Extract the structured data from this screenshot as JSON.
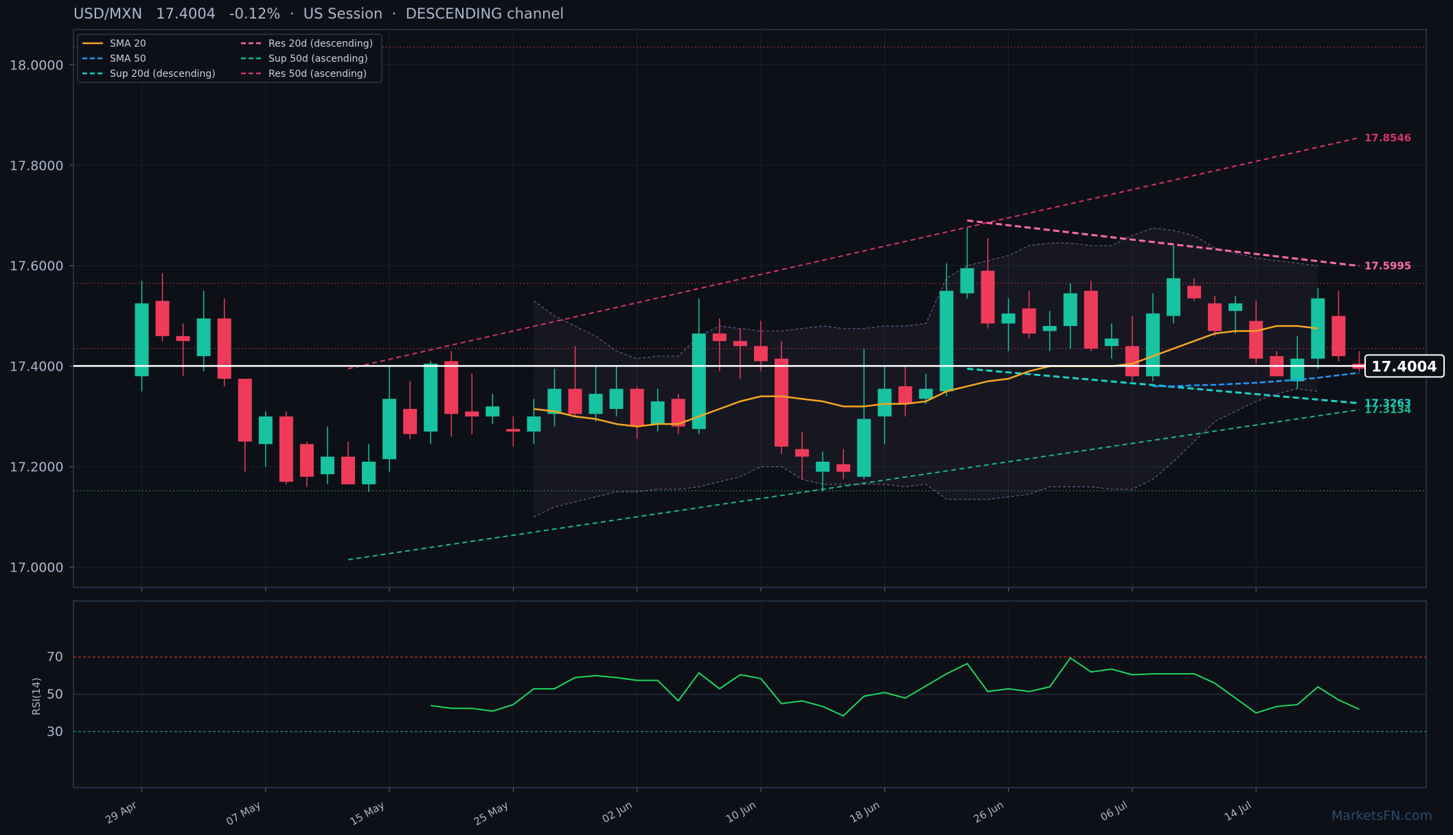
{
  "header": {
    "pair": "USD/MXN",
    "price": "17.4004",
    "change": "-0.12%",
    "session": "US Session",
    "channel": "DESCENDING channel",
    "sep": "·"
  },
  "watermark": "MarketsFN.com",
  "chart_data": [
    {
      "type": "candlestick",
      "title": "USD/MXN 17.4004 -0.12% · US Session · DESCENDING channel",
      "ylim": [
        16.96,
        18.07
      ],
      "yticks": [
        "17.0000",
        "17.2000",
        "17.4000",
        "17.6000",
        "17.8000",
        "18.0000"
      ],
      "xtick_labels": [
        "29 Apr",
        "07 May",
        "15 May",
        "25 May",
        "02 Jun",
        "10 Jun",
        "18 Jun",
        "26 Jun",
        "06 Jul",
        "14 Jul"
      ],
      "xtick_index": [
        0,
        6,
        12,
        18,
        24,
        30,
        36,
        42,
        48,
        54
      ],
      "grid": true,
      "legend_position": "top-left",
      "legend": [
        {
          "label": "SMA 20",
          "color": "#f5a623",
          "dash": "solid"
        },
        {
          "label": "Res 20d (descending)",
          "color": "#ff6ba8",
          "dash": "dashed"
        },
        {
          "label": "SMA 50",
          "color": "#1e9bff",
          "dash": "dashed"
        },
        {
          "label": "Sup 50d (ascending)",
          "color": "#17b890",
          "dash": "dashed"
        },
        {
          "label": "Sup 20d (descending)",
          "color": "#19d3c5",
          "dash": "dashed"
        },
        {
          "label": "Res 50d (ascending)",
          "color": "#d6336c",
          "dash": "dashed"
        }
      ],
      "candles": [
        {
          "o": 17.38,
          "h": 17.57,
          "l": 17.35,
          "c": 17.525
        },
        {
          "o": 17.53,
          "h": 17.585,
          "l": 17.45,
          "c": 17.46
        },
        {
          "o": 17.46,
          "h": 17.485,
          "l": 17.38,
          "c": 17.45
        },
        {
          "o": 17.42,
          "h": 17.55,
          "l": 17.39,
          "c": 17.495
        },
        {
          "o": 17.495,
          "h": 17.535,
          "l": 17.36,
          "c": 17.375
        },
        {
          "o": 17.375,
          "h": 17.375,
          "l": 17.19,
          "c": 17.25
        },
        {
          "o": 17.245,
          "h": 17.31,
          "l": 17.2,
          "c": 17.3
        },
        {
          "o": 17.3,
          "h": 17.31,
          "l": 17.165,
          "c": 17.17
        },
        {
          "o": 17.245,
          "h": 17.25,
          "l": 17.16,
          "c": 17.18
        },
        {
          "o": 17.185,
          "h": 17.28,
          "l": 17.165,
          "c": 17.22
        },
        {
          "o": 17.22,
          "h": 17.25,
          "l": 17.165,
          "c": 17.165
        },
        {
          "o": 17.165,
          "h": 17.245,
          "l": 17.15,
          "c": 17.21
        },
        {
          "o": 17.215,
          "h": 17.4,
          "l": 17.19,
          "c": 17.335
        },
        {
          "o": 17.315,
          "h": 17.37,
          "l": 17.255,
          "c": 17.265
        },
        {
          "o": 17.27,
          "h": 17.41,
          "l": 17.245,
          "c": 17.405
        },
        {
          "o": 17.41,
          "h": 17.43,
          "l": 17.26,
          "c": 17.305
        },
        {
          "o": 17.31,
          "h": 17.385,
          "l": 17.265,
          "c": 17.3
        },
        {
          "o": 17.3,
          "h": 17.345,
          "l": 17.285,
          "c": 17.32
        },
        {
          "o": 17.275,
          "h": 17.3,
          "l": 17.24,
          "c": 17.27
        },
        {
          "o": 17.27,
          "h": 17.335,
          "l": 17.245,
          "c": 17.3
        },
        {
          "o": 17.305,
          "h": 17.395,
          "l": 17.28,
          "c": 17.355
        },
        {
          "o": 17.355,
          "h": 17.44,
          "l": 17.3,
          "c": 17.305
        },
        {
          "o": 17.305,
          "h": 17.4,
          "l": 17.29,
          "c": 17.345
        },
        {
          "o": 17.315,
          "h": 17.4,
          "l": 17.3,
          "c": 17.355
        },
        {
          "o": 17.355,
          "h": 17.36,
          "l": 17.255,
          "c": 17.28
        },
        {
          "o": 17.285,
          "h": 17.355,
          "l": 17.27,
          "c": 17.33
        },
        {
          "o": 17.335,
          "h": 17.345,
          "l": 17.265,
          "c": 17.28
        },
        {
          "o": 17.275,
          "h": 17.535,
          "l": 17.265,
          "c": 17.465
        },
        {
          "o": 17.465,
          "h": 17.495,
          "l": 17.39,
          "c": 17.45
        },
        {
          "o": 17.45,
          "h": 17.475,
          "l": 17.375,
          "c": 17.44
        },
        {
          "o": 17.44,
          "h": 17.49,
          "l": 17.39,
          "c": 17.41
        },
        {
          "o": 17.415,
          "h": 17.45,
          "l": 17.225,
          "c": 17.24
        },
        {
          "o": 17.235,
          "h": 17.27,
          "l": 17.175,
          "c": 17.22
        },
        {
          "o": 17.19,
          "h": 17.23,
          "l": 17.15,
          "c": 17.21
        },
        {
          "o": 17.205,
          "h": 17.235,
          "l": 17.175,
          "c": 17.19
        },
        {
          "o": 17.18,
          "h": 17.435,
          "l": 17.175,
          "c": 17.295
        },
        {
          "o": 17.3,
          "h": 17.4,
          "l": 17.245,
          "c": 17.355
        },
        {
          "o": 17.36,
          "h": 17.4,
          "l": 17.3,
          "c": 17.325
        },
        {
          "o": 17.335,
          "h": 17.385,
          "l": 17.325,
          "c": 17.355
        },
        {
          "o": 17.35,
          "h": 17.605,
          "l": 17.34,
          "c": 17.55
        },
        {
          "o": 17.545,
          "h": 17.675,
          "l": 17.535,
          "c": 17.595
        },
        {
          "o": 17.59,
          "h": 17.655,
          "l": 17.475,
          "c": 17.485
        },
        {
          "o": 17.485,
          "h": 17.535,
          "l": 17.43,
          "c": 17.505
        },
        {
          "o": 17.515,
          "h": 17.55,
          "l": 17.455,
          "c": 17.465
        },
        {
          "o": 17.47,
          "h": 17.51,
          "l": 17.43,
          "c": 17.48
        },
        {
          "o": 17.48,
          "h": 17.565,
          "l": 17.435,
          "c": 17.545
        },
        {
          "o": 17.55,
          "h": 17.57,
          "l": 17.43,
          "c": 17.435
        },
        {
          "o": 17.44,
          "h": 17.485,
          "l": 17.415,
          "c": 17.455
        },
        {
          "o": 17.44,
          "h": 17.5,
          "l": 17.37,
          "c": 17.38
        },
        {
          "o": 17.38,
          "h": 17.545,
          "l": 17.37,
          "c": 17.505
        },
        {
          "o": 17.5,
          "h": 17.64,
          "l": 17.485,
          "c": 17.575
        },
        {
          "o": 17.56,
          "h": 17.575,
          "l": 17.53,
          "c": 17.535
        },
        {
          "o": 17.525,
          "h": 17.54,
          "l": 17.46,
          "c": 17.47
        },
        {
          "o": 17.51,
          "h": 17.54,
          "l": 17.465,
          "c": 17.525
        },
        {
          "o": 17.49,
          "h": 17.53,
          "l": 17.405,
          "c": 17.415
        },
        {
          "o": 17.42,
          "h": 17.43,
          "l": 17.38,
          "c": 17.38
        },
        {
          "o": 17.37,
          "h": 17.46,
          "l": 17.355,
          "c": 17.415
        },
        {
          "o": 17.415,
          "h": 17.555,
          "l": 17.395,
          "c": 17.535
        },
        {
          "o": 17.5,
          "h": 17.55,
          "l": 17.41,
          "c": 17.42
        },
        {
          "o": 17.405,
          "h": 17.43,
          "l": 17.39,
          "c": 17.395
        }
      ],
      "sma20": {
        "start": 19,
        "values": [
          17.315,
          17.31,
          17.3,
          17.295,
          17.285,
          17.28,
          17.285,
          17.285,
          17.3,
          17.315,
          17.33,
          17.34,
          17.34,
          17.335,
          17.33,
          17.32,
          17.32,
          17.325,
          17.325,
          17.33,
          17.35,
          17.36,
          17.37,
          17.375,
          17.39,
          17.4,
          17.4,
          17.4,
          17.4,
          17.405,
          17.42,
          17.435,
          17.45,
          17.465,
          17.47,
          17.47,
          17.48,
          17.48,
          17.475
        ]
      },
      "sma50": {
        "start": 49,
        "values": [
          17.36,
          17.36,
          17.362,
          17.363,
          17.365,
          17.367,
          17.37,
          17.373,
          17.377,
          17.382,
          17.387
        ]
      },
      "bollinger": {
        "start": 19,
        "upper": [
          17.53,
          17.5,
          17.48,
          17.46,
          17.43,
          17.415,
          17.42,
          17.42,
          17.46,
          17.48,
          17.475,
          17.47,
          17.47,
          17.475,
          17.48,
          17.475,
          17.475,
          17.48,
          17.48,
          17.485,
          17.575,
          17.6,
          17.61,
          17.62,
          17.64,
          17.645,
          17.645,
          17.64,
          17.64,
          17.66,
          17.675,
          17.67,
          17.66,
          17.635,
          17.625,
          17.615,
          17.61,
          17.605,
          17.6
        ],
        "lower": [
          17.1,
          17.12,
          17.13,
          17.14,
          17.15,
          17.15,
          17.155,
          17.155,
          17.16,
          17.17,
          17.18,
          17.2,
          17.2,
          17.175,
          17.165,
          17.165,
          17.165,
          17.165,
          17.16,
          17.165,
          17.135,
          17.135,
          17.135,
          17.14,
          17.145,
          17.16,
          17.16,
          17.16,
          17.155,
          17.155,
          17.175,
          17.21,
          17.25,
          17.29,
          17.31,
          17.33,
          17.345,
          17.355,
          17.35
        ]
      },
      "trendlines": [
        {
          "name": "Res 20d (descending)",
          "color": "#ff6ba8",
          "from": [
            40,
            17.69
          ],
          "to": [
            59,
            17.5995
          ],
          "label": "17.5995"
        },
        {
          "name": "Sup 20d (descending)",
          "color": "#19d3c5",
          "from": [
            40,
            17.395
          ],
          "to": [
            59,
            17.3263
          ],
          "label": "17.3263"
        },
        {
          "name": "Res 50d (ascending)",
          "color": "#d6336c",
          "from": [
            10,
            17.395
          ],
          "to": [
            59,
            17.8546
          ],
          "label": "17.8546"
        },
        {
          "name": "Sup 50d (ascending)",
          "color": "#17b890",
          "from": [
            10,
            17.015
          ],
          "to": [
            59,
            17.3134
          ],
          "label": "17.3134"
        }
      ],
      "horizontal_levels": [
        {
          "value": 18.035,
          "color": "#b33a3a"
        },
        {
          "value": 17.565,
          "color": "#b33a3a"
        },
        {
          "value": 17.435,
          "color": "#b33a3a"
        },
        {
          "value": 17.152,
          "color": "#2a9d5c"
        }
      ],
      "last_price": {
        "value": 17.4004,
        "label": "17.4004"
      }
    },
    {
      "type": "line",
      "ylabel": "RSI(14)",
      "ylim": [
        0,
        100
      ],
      "yticks": [
        "30",
        "50",
        "70"
      ],
      "levels": [
        70,
        50,
        30
      ],
      "series": [
        {
          "start": 14,
          "color": "#1ed760",
          "values": [
            44,
            42.5,
            42.5,
            41,
            44.5,
            53,
            53,
            59,
            60,
            59,
            57.5,
            57.5,
            46.5,
            61.5,
            53,
            60.5,
            58.5,
            45,
            46.5,
            43.5,
            38.5,
            49,
            51,
            48,
            54.5,
            61,
            66.5,
            51.5,
            53,
            51.5,
            54,
            69.5,
            62,
            63.5,
            60.5,
            61,
            61,
            61,
            56,
            48,
            40,
            43.5,
            44.5,
            54,
            47,
            42
          ]
        }
      ]
    }
  ]
}
